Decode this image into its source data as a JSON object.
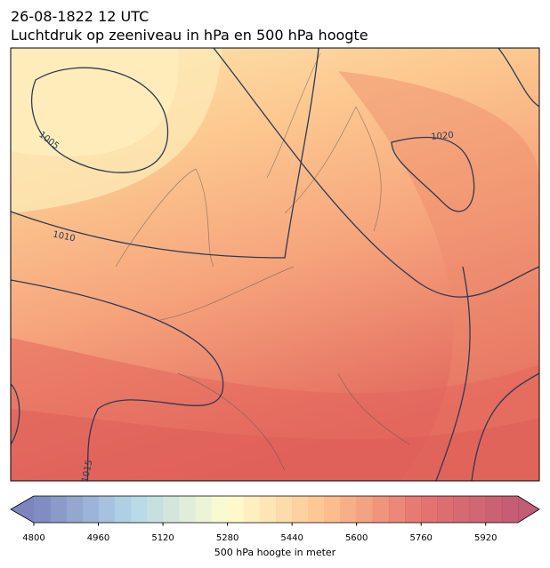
{
  "header": {
    "title_line1": "26-08-1822 12 UTC",
    "title_line2": "Luchtdruk op zeeniveau in hPa en 500 hPa hoogte"
  },
  "map": {
    "contour_labels": [
      "1005",
      "1010",
      "1015",
      "1020"
    ]
  },
  "colorbar": {
    "label": "500 hPa hoogte in meter",
    "lim": [
      4800,
      6000
    ],
    "ticks": [
      4800,
      4960,
      5120,
      5280,
      5440,
      5600,
      5760,
      5920
    ],
    "colors": [
      "#6470b3",
      "#a6cfe4",
      "#fefdc8",
      "#fdb87c",
      "#e05c55",
      "#b8405e"
    ]
  }
}
